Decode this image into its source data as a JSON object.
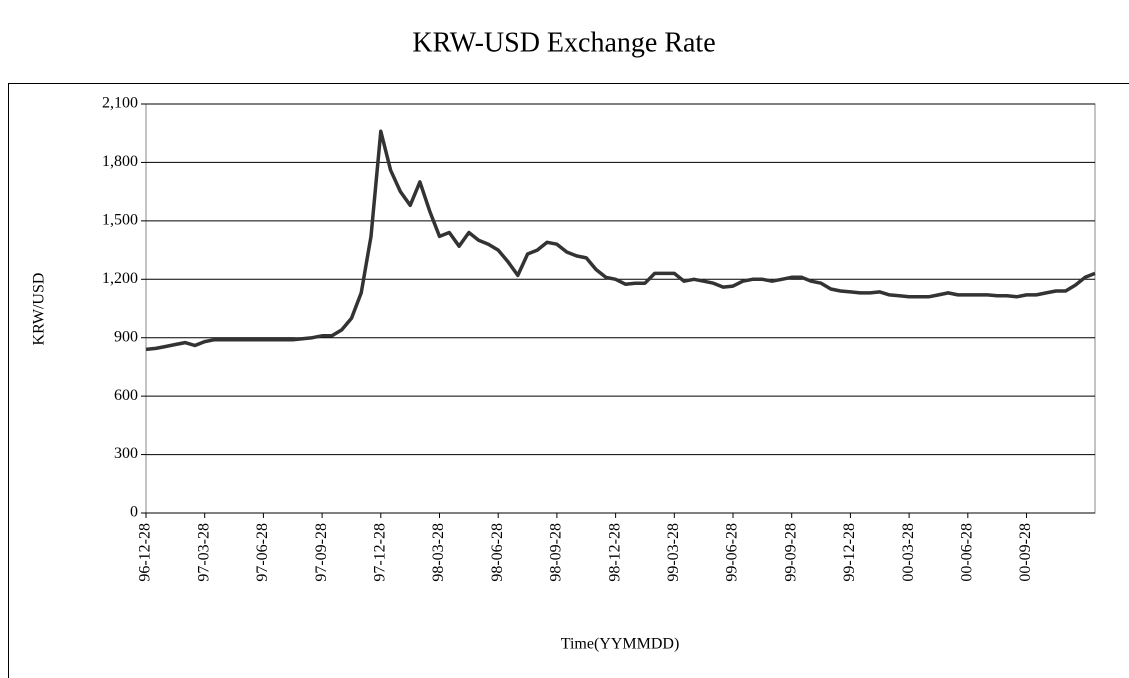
{
  "chart_data": {
    "type": "line",
    "title": "KRW-USD Exchange Rate",
    "x_label": "Time(YYMMDD)",
    "y_label": "KRW/USD",
    "categories": [
      "96-12-28",
      null,
      null,
      null,
      null,
      null,
      "97-03-28",
      null,
      null,
      null,
      null,
      null,
      "97-06-28",
      null,
      null,
      null,
      null,
      null,
      "97-09-28",
      null,
      null,
      null,
      null,
      null,
      "97-12-28",
      null,
      null,
      null,
      null,
      null,
      "98-03-28",
      null,
      null,
      null,
      null,
      null,
      "98-06-28",
      null,
      null,
      null,
      null,
      null,
      "98-09-28",
      null,
      null,
      null,
      null,
      null,
      "98-12-28",
      null,
      null,
      null,
      null,
      null,
      "99-03-28",
      null,
      null,
      null,
      null,
      null,
      "99-06-28",
      null,
      null,
      null,
      null,
      null,
      "99-09-28",
      null,
      null,
      null,
      null,
      null,
      "99-12-28",
      null,
      null,
      null,
      null,
      null,
      "00-03-28",
      null,
      null,
      null,
      null,
      null,
      "00-06-28",
      null,
      null,
      null,
      null,
      null,
      "00-09-28",
      null,
      null,
      null,
      null,
      null,
      null,
      null
    ],
    "series": [
      {
        "name": "KRW/USD",
        "color": "#333333",
        "values": [
          840,
          845,
          855,
          865,
          875,
          860,
          880,
          890,
          890,
          890,
          890,
          890,
          890,
          890,
          890,
          890,
          895,
          900,
          910,
          910,
          940,
          1000,
          1130,
          1420,
          1960,
          1760,
          1650,
          1580,
          1700,
          1550,
          1420,
          1440,
          1370,
          1440,
          1400,
          1380,
          1350,
          1290,
          1220,
          1330,
          1350,
          1390,
          1380,
          1340,
          1320,
          1310,
          1250,
          1210,
          1200,
          1175,
          1180,
          1180,
          1230,
          1230,
          1230,
          1190,
          1200,
          1190,
          1180,
          1160,
          1165,
          1190,
          1200,
          1200,
          1190,
          1200,
          1210,
          1210,
          1190,
          1180,
          1150,
          1140,
          1135,
          1130,
          1130,
          1135,
          1120,
          1115,
          1110,
          1110,
          1110,
          1120,
          1130,
          1120,
          1120,
          1120,
          1120,
          1115,
          1115,
          1110,
          1120,
          1120,
          1130,
          1140,
          1140,
          1170,
          1210,
          1230
        ]
      }
    ],
    "ylim": [
      0,
      2100
    ],
    "yticks": [
      0,
      300,
      600,
      900,
      {
        "value": 1200,
        "label": "1,200"
      },
      {
        "value": 1500,
        "label": "1,500"
      },
      {
        "value": 1800,
        "label": "1,800"
      },
      {
        "value": 2100,
        "label": "2,100"
      }
    ],
    "grid": true
  }
}
